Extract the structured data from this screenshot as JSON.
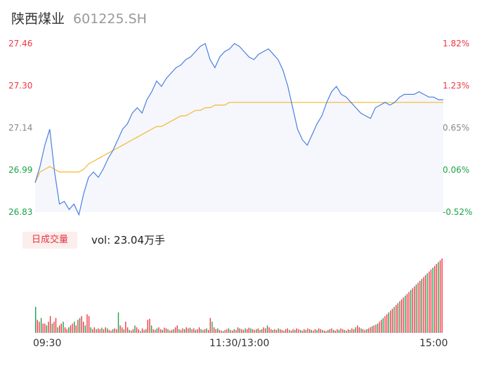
{
  "header": {
    "name": "陕西煤业",
    "code": "601225.SH"
  },
  "colors": {
    "up": "#f23645",
    "down": "#1aa34a",
    "neutral": "#888888",
    "price_line": "#4a7fe0",
    "avg_line": "#f5b731",
    "area_fill": "#f5f7fd"
  },
  "volume": {
    "tag": "日成交量",
    "text": "vol: 23.04万手"
  },
  "chart_data": [
    {
      "type": "line",
      "title": "",
      "series": [
        {
          "name": "",
          "values": [
            26.94,
            27.0,
            27.08,
            27.14,
            26.98,
            26.86,
            26.87,
            26.84,
            26.86,
            26.82,
            26.9,
            26.96,
            26.98,
            26.96,
            26.99,
            27.03,
            27.06,
            27.1,
            27.14,
            27.16,
            27.2,
            27.22,
            27.2,
            27.25,
            27.28,
            27.32,
            27.3,
            27.33,
            27.35,
            27.37,
            27.38,
            27.4,
            27.41,
            27.43,
            27.45,
            27.46,
            27.4,
            27.37,
            27.41,
            27.43,
            27.44,
            27.46,
            27.45,
            27.43,
            27.41,
            27.4,
            27.42,
            27.43,
            27.44,
            27.42,
            27.4,
            27.36,
            27.3,
            27.22,
            27.14,
            27.1,
            27.08,
            27.12,
            27.16,
            27.19,
            27.24,
            27.28,
            27.3,
            27.27,
            27.26,
            27.24,
            27.22,
            27.2,
            27.19,
            27.18,
            27.22,
            27.23,
            27.24,
            27.23,
            27.24,
            27.26,
            27.27,
            27.27,
            27.27,
            27.28,
            27.27,
            27.26,
            27.26,
            27.25,
            27.25
          ]
        },
        {
          "name": "",
          "values": [
            26.94,
            26.98,
            26.99,
            27.0,
            26.99,
            26.98,
            26.98,
            26.98,
            26.98,
            26.98,
            26.99,
            27.01,
            27.02,
            27.03,
            27.04,
            27.05,
            27.06,
            27.07,
            27.08,
            27.09,
            27.1,
            27.11,
            27.12,
            27.13,
            27.14,
            27.15,
            27.15,
            27.16,
            27.17,
            27.18,
            27.19,
            27.19,
            27.2,
            27.21,
            27.21,
            27.22,
            27.22,
            27.23,
            27.23,
            27.23,
            27.24,
            27.24,
            27.24,
            27.24,
            27.24,
            27.24,
            27.24,
            27.24,
            27.24,
            27.24,
            27.24,
            27.24,
            27.24,
            27.24,
            27.24,
            27.24,
            27.24,
            27.24,
            27.24,
            27.24,
            27.24,
            27.24,
            27.24,
            27.24,
            27.24,
            27.24,
            27.24,
            27.24,
            27.24,
            27.24,
            27.24,
            27.24,
            27.24,
            27.24,
            27.24,
            27.24,
            27.24,
            27.24,
            27.24,
            27.24,
            27.24,
            27.24,
            27.24,
            27.24,
            27.24
          ]
        }
      ],
      "ylim": [
        26.83,
        27.46
      ],
      "y_ticks": [
        "27.46",
        "27.30",
        "27.14",
        "26.99",
        "26.83"
      ],
      "y_ticks_right": [
        "1.82%",
        "1.23%",
        "0.65%",
        "0.06%",
        "-0.52%"
      ],
      "x_ticks": [
        "09:30",
        "11:30/13:00",
        "15:00"
      ]
    },
    {
      "type": "bar",
      "title": "",
      "values": [
        70,
        35,
        30,
        40,
        25,
        25,
        20,
        30,
        45,
        25,
        30,
        40,
        15,
        20,
        25,
        30,
        15,
        10,
        15,
        20,
        25,
        30,
        20,
        35,
        40,
        45,
        30,
        20,
        50,
        45,
        15,
        10,
        15,
        10,
        12,
        10,
        14,
        10,
        15,
        12,
        8,
        6,
        10,
        12,
        10,
        55,
        20,
        15,
        10,
        30,
        15,
        8,
        6,
        10,
        20,
        15,
        10,
        5,
        12,
        8,
        10,
        35,
        38,
        20,
        10,
        8,
        12,
        15,
        10,
        8,
        14,
        12,
        10,
        6,
        8,
        10,
        15,
        20,
        10,
        8,
        12,
        10,
        15,
        12,
        14,
        10,
        12,
        8,
        10,
        15,
        10,
        8,
        10,
        12,
        8,
        40,
        30,
        15,
        10,
        12,
        8,
        6,
        5,
        8,
        10,
        12,
        8,
        6,
        10,
        8,
        15,
        12,
        10,
        8,
        12,
        10,
        14,
        12,
        10,
        8,
        10,
        12,
        8,
        10,
        15,
        12,
        20,
        15,
        10,
        8,
        10,
        8,
        12,
        10,
        8,
        6,
        10,
        12,
        8,
        6,
        10,
        8,
        12,
        10,
        8,
        6,
        10,
        8,
        12,
        10,
        8,
        6,
        10,
        8,
        12,
        10,
        8,
        6,
        5,
        8,
        10,
        12,
        8,
        6,
        10,
        8,
        12,
        10,
        8,
        6,
        10,
        8,
        12,
        10,
        15,
        20,
        15,
        12,
        10,
        8,
        10,
        12,
        15,
        18,
        20,
        22,
        25,
        30,
        35,
        40,
        45,
        50,
        55,
        60,
        65,
        70,
        75,
        80,
        85,
        90,
        95,
        100,
        105,
        110,
        115,
        120,
        125,
        130,
        135,
        140,
        145,
        150,
        155,
        160,
        165,
        170,
        175,
        180,
        185,
        190,
        195,
        200
      ],
      "colors": []
    }
  ]
}
